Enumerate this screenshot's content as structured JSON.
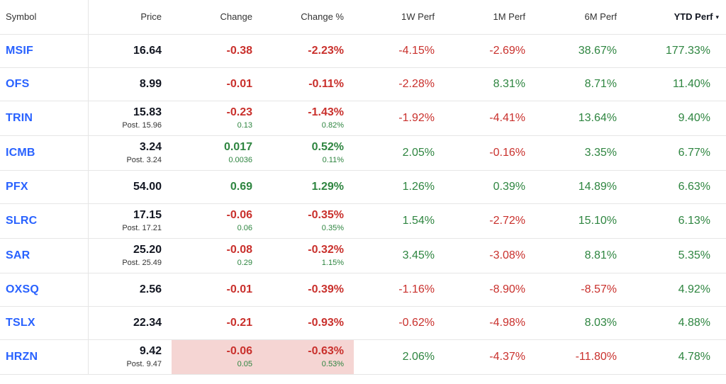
{
  "headers": {
    "symbol": "Symbol",
    "price": "Price",
    "change": "Change",
    "change_pct": "Change %",
    "perf_1w": "1W Perf",
    "perf_1m": "1M Perf",
    "perf_6m": "6M Perf",
    "perf_ytd": "YTD Perf",
    "sort_caret": "▾"
  },
  "colors": {
    "link": "#2962ff",
    "negative": "#c9302c",
    "positive": "#2e8540",
    "highlight": "#f5d5d3"
  },
  "rows": [
    {
      "symbol": "MSIF",
      "price": "16.64",
      "post": "",
      "change": "-0.38",
      "change_sub": "",
      "change_pct": "-2.23%",
      "change_pct_sub": "",
      "perf_1w": "-4.15%",
      "perf_1m": "-2.69%",
      "perf_6m": "38.67%",
      "perf_ytd": "177.33%"
    },
    {
      "symbol": "OFS",
      "price": "8.99",
      "post": "",
      "change": "-0.01",
      "change_sub": "",
      "change_pct": "-0.11%",
      "change_pct_sub": "",
      "perf_1w": "-2.28%",
      "perf_1m": "8.31%",
      "perf_6m": "8.71%",
      "perf_ytd": "11.40%"
    },
    {
      "symbol": "TRIN",
      "price": "15.83",
      "post": "Post. 15.96",
      "change": "-0.23",
      "change_sub": "0.13",
      "change_pct": "-1.43%",
      "change_pct_sub": "0.82%",
      "perf_1w": "-1.92%",
      "perf_1m": "-4.41%",
      "perf_6m": "13.64%",
      "perf_ytd": "9.40%"
    },
    {
      "symbol": "ICMB",
      "price": "3.24",
      "post": "Post. 3.24",
      "change": "0.017",
      "change_sub": "0.0036",
      "change_pct": "0.52%",
      "change_pct_sub": "0.11%",
      "perf_1w": "2.05%",
      "perf_1m": "-0.16%",
      "perf_6m": "3.35%",
      "perf_ytd": "6.77%"
    },
    {
      "symbol": "PFX",
      "price": "54.00",
      "post": "",
      "change": "0.69",
      "change_sub": "",
      "change_pct": "1.29%",
      "change_pct_sub": "",
      "perf_1w": "1.26%",
      "perf_1m": "0.39%",
      "perf_6m": "14.89%",
      "perf_ytd": "6.63%"
    },
    {
      "symbol": "SLRC",
      "price": "17.15",
      "post": "Post. 17.21",
      "change": "-0.06",
      "change_sub": "0.06",
      "change_pct": "-0.35%",
      "change_pct_sub": "0.35%",
      "perf_1w": "1.54%",
      "perf_1m": "-2.72%",
      "perf_6m": "15.10%",
      "perf_ytd": "6.13%"
    },
    {
      "symbol": "SAR",
      "price": "25.20",
      "post": "Post. 25.49",
      "change": "-0.08",
      "change_sub": "0.29",
      "change_pct": "-0.32%",
      "change_pct_sub": "1.15%",
      "perf_1w": "3.45%",
      "perf_1m": "-3.08%",
      "perf_6m": "8.81%",
      "perf_ytd": "5.35%"
    },
    {
      "symbol": "OXSQ",
      "price": "2.56",
      "post": "",
      "change": "-0.01",
      "change_sub": "",
      "change_pct": "-0.39%",
      "change_pct_sub": "",
      "perf_1w": "-1.16%",
      "perf_1m": "-8.90%",
      "perf_6m": "-8.57%",
      "perf_ytd": "4.92%"
    },
    {
      "symbol": "TSLX",
      "price": "22.34",
      "post": "",
      "change": "-0.21",
      "change_sub": "",
      "change_pct": "-0.93%",
      "change_pct_sub": "",
      "perf_1w": "-0.62%",
      "perf_1m": "-4.98%",
      "perf_6m": "8.03%",
      "perf_ytd": "4.88%"
    },
    {
      "symbol": "HRZN",
      "price": "9.42",
      "post": "Post. 9.47",
      "change": "-0.06",
      "change_sub": "0.05",
      "change_pct": "-0.63%",
      "change_pct_sub": "0.53%",
      "perf_1w": "2.06%",
      "perf_1m": "-4.37%",
      "perf_6m": "-11.80%",
      "perf_ytd": "4.78%",
      "highlight": true
    }
  ]
}
